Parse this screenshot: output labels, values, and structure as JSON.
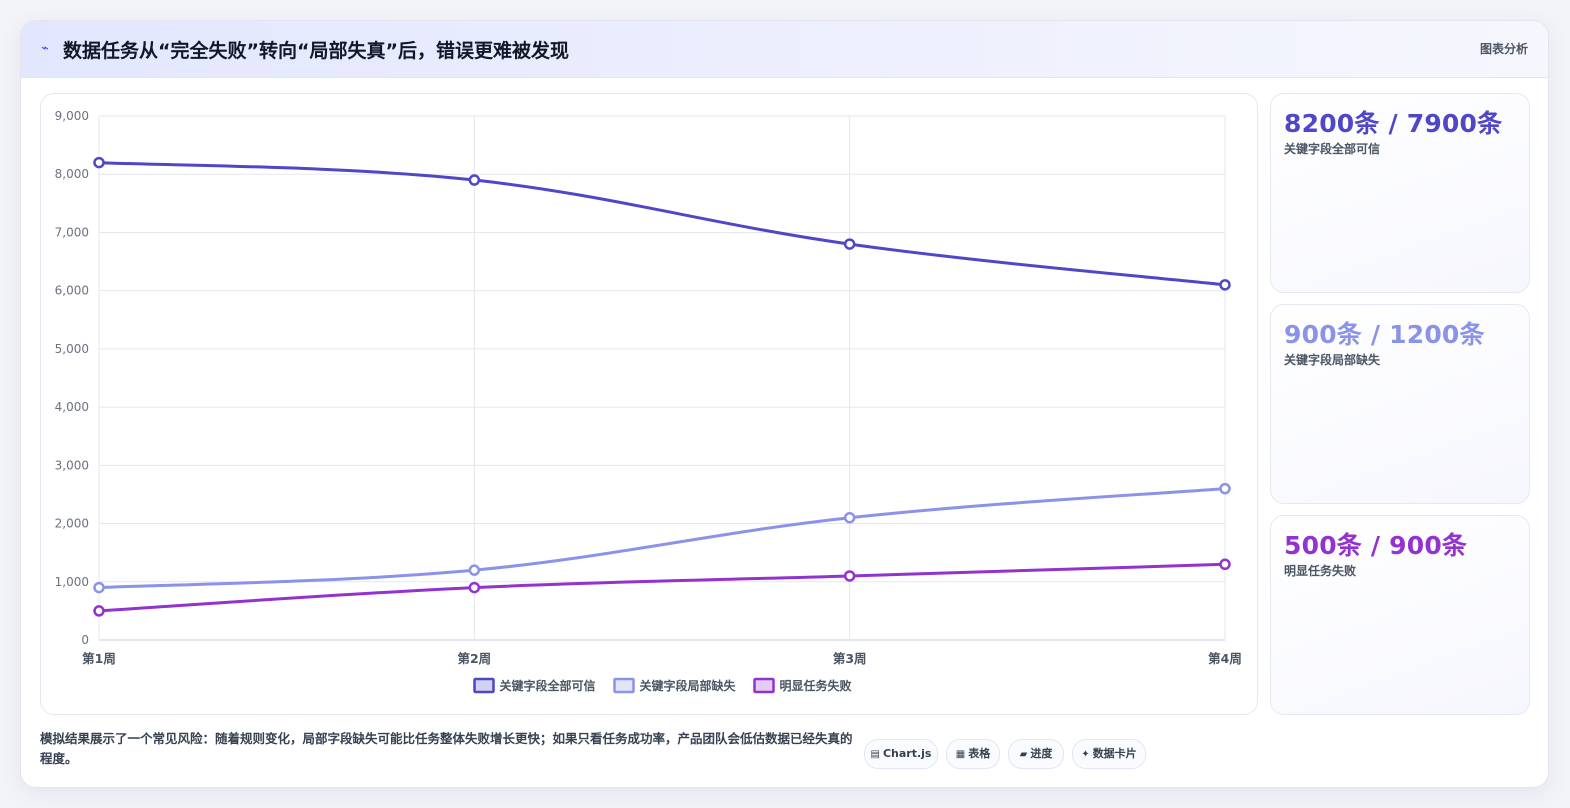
{
  "header": {
    "icon": "chart-line-icon",
    "title": "数据任务从“完全失败”转向“局部失真”后，错误更难被发现",
    "tag": "图表分析"
  },
  "chart_data": {
    "type": "line",
    "categories": [
      "第1周",
      "第2周",
      "第3周",
      "第4周"
    ],
    "ylim": [
      0,
      9000
    ],
    "yticks": [
      0,
      1000,
      2000,
      3000,
      4000,
      5000,
      6000,
      7000,
      8000,
      9000
    ],
    "ytick_labels": [
      "0",
      "1,000",
      "2,000",
      "3,000",
      "4,000",
      "5,000",
      "6,000",
      "7,000",
      "8,000",
      "9,000"
    ],
    "grid": true,
    "legend_position": "bottom",
    "series": [
      {
        "name": "关键字段全部可信",
        "values": [
          8200,
          7900,
          6800,
          6100
        ],
        "color": "#4f46c8"
      },
      {
        "name": "关键字段局部缺失",
        "values": [
          900,
          1200,
          2100,
          2600
        ],
        "color": "#8b93e8"
      },
      {
        "name": "明显任务失败",
        "values": [
          500,
          900,
          1100,
          1300
        ],
        "color": "#9333cf"
      }
    ]
  },
  "stats": [
    {
      "value": "8200条 / 7900条",
      "label": "关键字段全部可信",
      "color": "#4f46c8"
    },
    {
      "value": "900条 / 1200条",
      "label": "关键字段局部缺失",
      "color": "#8b93e8"
    },
    {
      "value": "500条 / 900条",
      "label": "明显任务失败",
      "color": "#9333cf"
    }
  ],
  "footer": {
    "note": "模拟结果展示了一个常见风险：随着规则变化，局部字段缺失可能比任务整体失败增长更快；如果只看任务成功率，产品团队会低估数据已经失真的程度。",
    "chips": [
      {
        "icon": "▤",
        "label": "Chart.js"
      },
      {
        "icon": "▦",
        "label": "表格"
      },
      {
        "icon": "▰",
        "label": "进度"
      },
      {
        "icon": "✦",
        "label": "数据卡片"
      }
    ]
  }
}
